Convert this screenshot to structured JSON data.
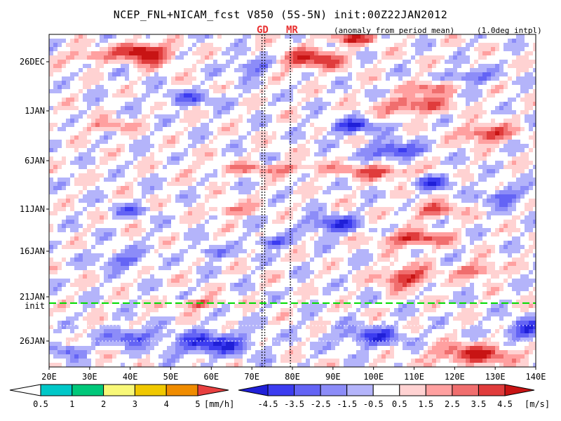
{
  "chart_data": {
    "type": "heatmap",
    "title": "NCEP_FNL+NICAM_fcst V850 (5S-5N) init:00Z22JAN2012",
    "subtitle_left": "(anomaly from period mean)",
    "subtitle_right": "(1.0deg intpl)",
    "markers": [
      {
        "label": "GD",
        "lon": 72.5
      },
      {
        "label": "MR",
        "lon": 79.5
      }
    ],
    "init_label": "init",
    "init_time_label_index": 4.6,
    "x_ticks": [
      "20E",
      "30E",
      "40E",
      "50E",
      "60E",
      "70E",
      "80E",
      "90E",
      "100E",
      "110E",
      "120E",
      "130E",
      "140E"
    ],
    "x_range_deg": [
      20,
      140
    ],
    "y_ticks": [
      "26DEC",
      "1JAN",
      "6JAN",
      "11JAN",
      "16JAN",
      "21JAN",
      "26JAN"
    ],
    "wind_colorbar": {
      "unit": "[m/s]",
      "labels": [
        "-4.5",
        "-3.5",
        "-2.5",
        "-1.5",
        "-0.5",
        "0.5",
        "1.5",
        "2.5",
        "3.5",
        "4.5"
      ],
      "colors": [
        "#2020d8",
        "#3c3cf0",
        "#6464f5",
        "#8c8cf8",
        "#b4b4fa",
        "#ffffff",
        "#ffd2d2",
        "#ffa0a0",
        "#f06e6e",
        "#e03c3c",
        "#c81414"
      ]
    },
    "rain_colorbar": {
      "unit": "[mm/h]",
      "labels": [
        "0.5",
        "1",
        "2",
        "3",
        "4",
        "5"
      ],
      "colors": [
        "#ffffff",
        "#00c8c8",
        "#00c87a",
        "#f8f878",
        "#f0c800",
        "#f08c00",
        "#e84040"
      ]
    },
    "grid": false
  }
}
